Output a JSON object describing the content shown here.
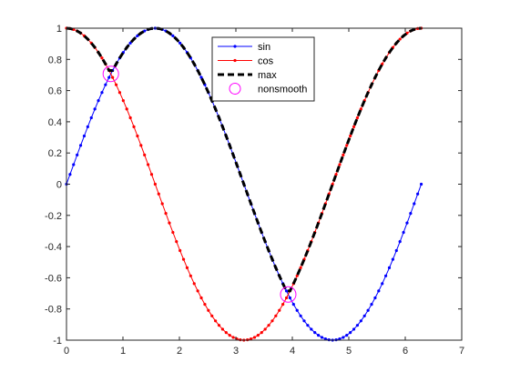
{
  "chart_data": {
    "type": "line",
    "title": "",
    "xlabel": "",
    "ylabel": "",
    "xlim": [
      0,
      7
    ],
    "ylim": [
      -1,
      1
    ],
    "xticks": [
      0,
      1,
      2,
      3,
      4,
      5,
      6,
      7
    ],
    "yticks": [
      -1,
      -0.8,
      -0.6,
      -0.4,
      -0.2,
      0,
      0.2,
      0.4,
      0.6,
      0.8,
      1
    ],
    "xtick_labels": [
      "0",
      "1",
      "2",
      "3",
      "4",
      "5",
      "6",
      "7"
    ],
    "ytick_labels": [
      "-1",
      "-0.8",
      "-0.6",
      "-0.4",
      "-0.2",
      "0",
      "0.2",
      "0.4",
      "0.6",
      "0.8",
      "1"
    ],
    "grid": false,
    "x_domain": [
      0,
      6.2832
    ],
    "samples": 101,
    "series": [
      {
        "name": "sin",
        "function": "sin(x)",
        "color": "#0000ff",
        "line_style": "solid",
        "marker": "dot"
      },
      {
        "name": "cos",
        "function": "cos(x)",
        "color": "#ff0000",
        "line_style": "solid",
        "marker": "dot"
      },
      {
        "name": "max",
        "function": "max(sin(x), cos(x))",
        "color": "#000000",
        "line_style": "dashed",
        "marker": "none"
      },
      {
        "name": "nonsmooth",
        "color": "#ff00ff",
        "line_style": "none",
        "marker": "circle",
        "points": [
          {
            "x": 0.7854,
            "y": 0.7071
          },
          {
            "x": 3.927,
            "y": -0.7071
          }
        ]
      }
    ],
    "legend": {
      "position": "top-center",
      "entries": [
        "sin",
        "cos",
        "max",
        "nonsmooth"
      ]
    }
  }
}
